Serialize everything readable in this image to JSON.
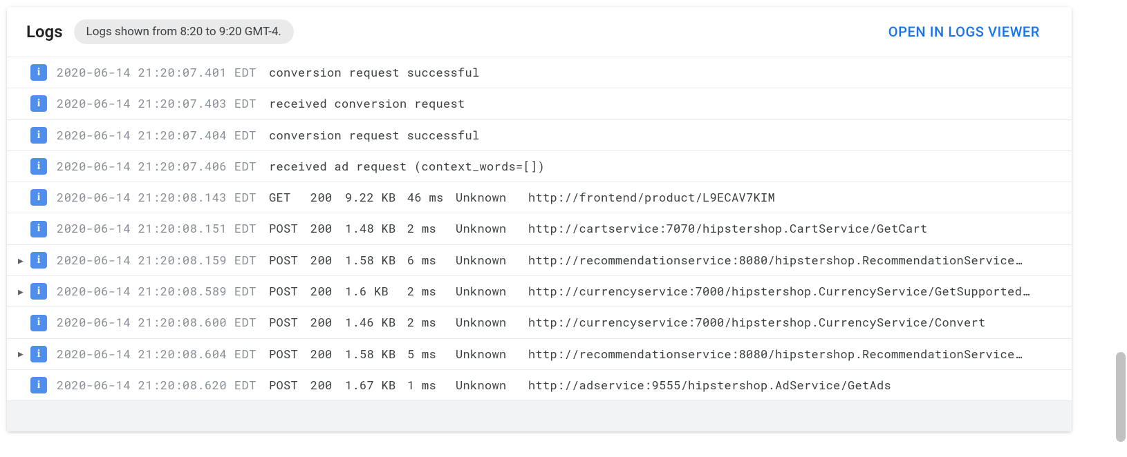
{
  "header": {
    "title": "Logs",
    "chip_text": "Logs shown from 8:20 to 9:20 GMT-4.",
    "open_link_label": "OPEN IN LOGS VIEWER"
  },
  "colors": {
    "severity_info_bg": "#4f8eea",
    "timestamp_text": "#888e95",
    "link_text": "#1a73e8",
    "chip_bg": "#eaeaea",
    "row_border": "#e8eaed",
    "footer_bg": "#f1f3f4"
  },
  "severity_icon_glyph": "i",
  "log_entries": [
    {
      "expandable": false,
      "severity": "info",
      "timestamp": "2020-06-14 21:20:07.401 EDT",
      "type": "text",
      "message": "conversion request successful"
    },
    {
      "expandable": false,
      "severity": "info",
      "timestamp": "2020-06-14 21:20:07.403 EDT",
      "type": "text",
      "message": "received conversion request"
    },
    {
      "expandable": false,
      "severity": "info",
      "timestamp": "2020-06-14 21:20:07.404 EDT",
      "type": "text",
      "message": "conversion request successful"
    },
    {
      "expandable": false,
      "severity": "info",
      "timestamp": "2020-06-14 21:20:07.406 EDT",
      "type": "text",
      "message": "received ad request (context_words=[])"
    },
    {
      "expandable": false,
      "severity": "info",
      "timestamp": "2020-06-14 21:20:08.143 EDT",
      "type": "http",
      "method": "GET",
      "status": "200",
      "size": "9.22 KB",
      "latency": "46 ms",
      "agent": "Unknown",
      "url": "http://frontend/product/L9ECAV7KIM"
    },
    {
      "expandable": false,
      "severity": "info",
      "timestamp": "2020-06-14 21:20:08.151 EDT",
      "type": "http",
      "method": "POST",
      "status": "200",
      "size": "1.48 KB",
      "latency": "2 ms",
      "agent": "Unknown",
      "url": "http://cartservice:7070/hipstershop.CartService/GetCart"
    },
    {
      "expandable": true,
      "severity": "info",
      "timestamp": "2020-06-14 21:20:08.159 EDT",
      "type": "http",
      "method": "POST",
      "status": "200",
      "size": "1.58 KB",
      "latency": "6 ms",
      "agent": "Unknown",
      "url": "http://recommendationservice:8080/hipstershop.RecommendationService…"
    },
    {
      "expandable": true,
      "severity": "info",
      "timestamp": "2020-06-14 21:20:08.589 EDT",
      "type": "http",
      "method": "POST",
      "status": "200",
      "size": "1.6 KB",
      "latency": "2 ms",
      "agent": "Unknown",
      "url": "http://currencyservice:7000/hipstershop.CurrencyService/GetSupported…"
    },
    {
      "expandable": false,
      "severity": "info",
      "timestamp": "2020-06-14 21:20:08.600 EDT",
      "type": "http",
      "method": "POST",
      "status": "200",
      "size": "1.46 KB",
      "latency": "2 ms",
      "agent": "Unknown",
      "url": "http://currencyservice:7000/hipstershop.CurrencyService/Convert"
    },
    {
      "expandable": true,
      "severity": "info",
      "timestamp": "2020-06-14 21:20:08.604 EDT",
      "type": "http",
      "method": "POST",
      "status": "200",
      "size": "1.58 KB",
      "latency": "5 ms",
      "agent": "Unknown",
      "url": "http://recommendationservice:8080/hipstershop.RecommendationService…"
    },
    {
      "expandable": false,
      "severity": "info",
      "timestamp": "2020-06-14 21:20:08.620 EDT",
      "type": "http",
      "method": "POST",
      "status": "200",
      "size": "1.67 KB",
      "latency": "1 ms",
      "agent": "Unknown",
      "url": "http://adservice:9555/hipstershop.AdService/GetAds"
    }
  ]
}
